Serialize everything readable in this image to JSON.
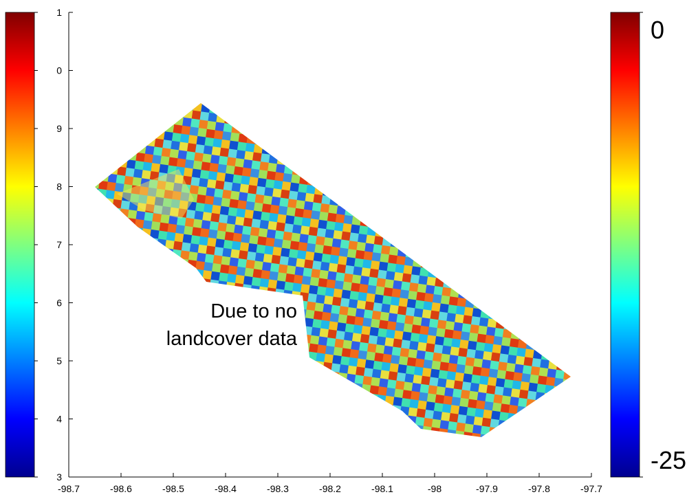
{
  "chart_data": {
    "type": "image",
    "annotation": [
      "Due to no",
      "landcover data"
    ],
    "xlim": [
      -98.7,
      -97.7
    ],
    "xticks": [
      -98.7,
      -98.6,
      -98.5,
      -98.4,
      -98.3,
      -98.2,
      -98.1,
      -98,
      -97.9,
      -97.8,
      -97.7
    ],
    "ylim": [
      3,
      11
    ],
    "yticks": [
      3,
      4,
      5,
      6,
      7,
      8,
      9,
      {
        "value": 10,
        "label": "0"
      },
      {
        "value": 11,
        "label": "1"
      }
    ],
    "colorbar": {
      "lim": [
        -25,
        0
      ],
      "ticks": [
        -25,
        0
      ]
    }
  }
}
